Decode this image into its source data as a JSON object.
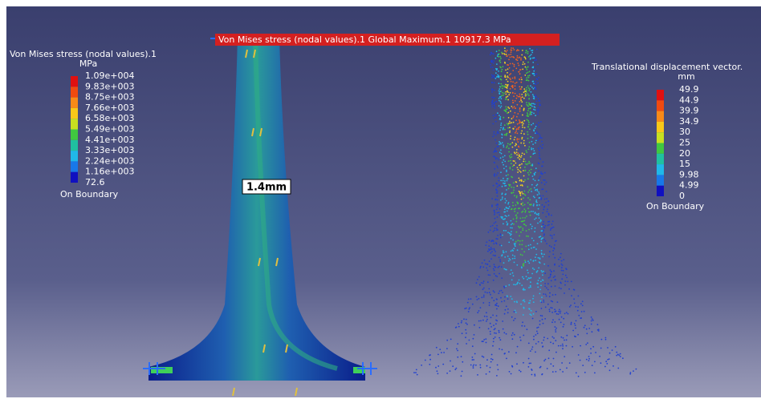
{
  "banner": {
    "text": "Von Mises stress (nodal values).1  Global Maximum.1  10917.3 MPa"
  },
  "stress_legend": {
    "title": "Von Mises stress (nodal values).1",
    "unit": "MPa",
    "labels": [
      "1.09e+004",
      "9.83e+003",
      "8.75e+003",
      "7.66e+003",
      "6.58e+003",
      "5.49e+003",
      "4.41e+003",
      "3.33e+003",
      "2.24e+003",
      "1.16e+003",
      "72.6"
    ],
    "footer": "On Boundary"
  },
  "displacement_legend": {
    "title": "Translational displacement vector.",
    "unit": "mm",
    "labels": [
      "49.9",
      "44.9",
      "39.9",
      "34.9",
      "30",
      "25",
      "20",
      "15",
      "9.98",
      "4.99",
      "0"
    ],
    "footer": "On Boundary"
  },
  "dimension_label": "1.4mm"
}
